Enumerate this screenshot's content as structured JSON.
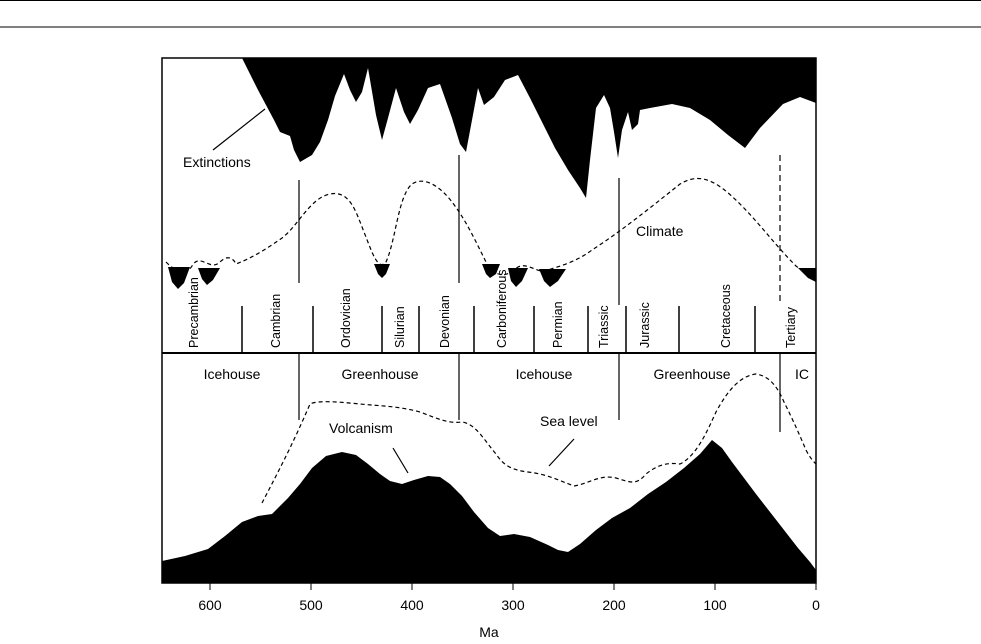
{
  "axis": {
    "label": "Ma",
    "ticks": [
      "600",
      "500",
      "400",
      "300",
      "200",
      "100",
      "0"
    ]
  },
  "periods": [
    "Precambrian",
    "Cambrian",
    "Ordovician",
    "Silurian",
    "Devonian",
    "Carboniferous",
    "Permian",
    "Triassic",
    "Jurassic",
    "Cretaceous",
    "Tertiary"
  ],
  "regimes": [
    "Icehouse",
    "Greenhouse",
    "Icehouse",
    "Greenhouse",
    "IC"
  ],
  "labels": {
    "extinctions": "Extinctions",
    "climate": "Climate",
    "sea_level": "Sea level",
    "volcanism": "Volcanism"
  },
  "colors": {
    "fill": "#000000",
    "line": "#000000",
    "background": "#ffffff"
  }
}
